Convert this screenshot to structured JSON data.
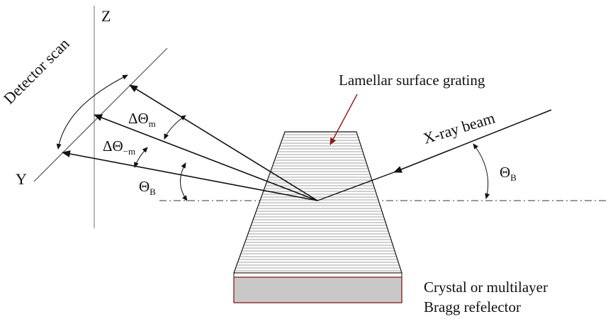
{
  "labels": {
    "axis_z": "Z",
    "axis_y": "Y",
    "detector_scan": "Detector scan",
    "grating": "Lamellar surface grating",
    "xray_beam": "X-ray beam",
    "delta_theta_m_base": "ΔΘ",
    "delta_theta_m_sub": "m",
    "delta_theta_neg_m_base": "ΔΘ",
    "delta_theta_neg_m_sub": "−m",
    "theta_b_left_base": "Θ",
    "theta_b_left_sub": "B",
    "theta_b_right_base": "Θ",
    "theta_b_right_sub": "B",
    "reflector_line1": "Crystal or multilayer",
    "reflector_line2": "Bragg refelector"
  },
  "colors": {
    "ink": "#111111",
    "grating_pointer": "#8b1a1a",
    "reflector_fill": "#c8c8c8",
    "reflector_border": "#8b2a2a",
    "axis_gray": "#888888"
  }
}
